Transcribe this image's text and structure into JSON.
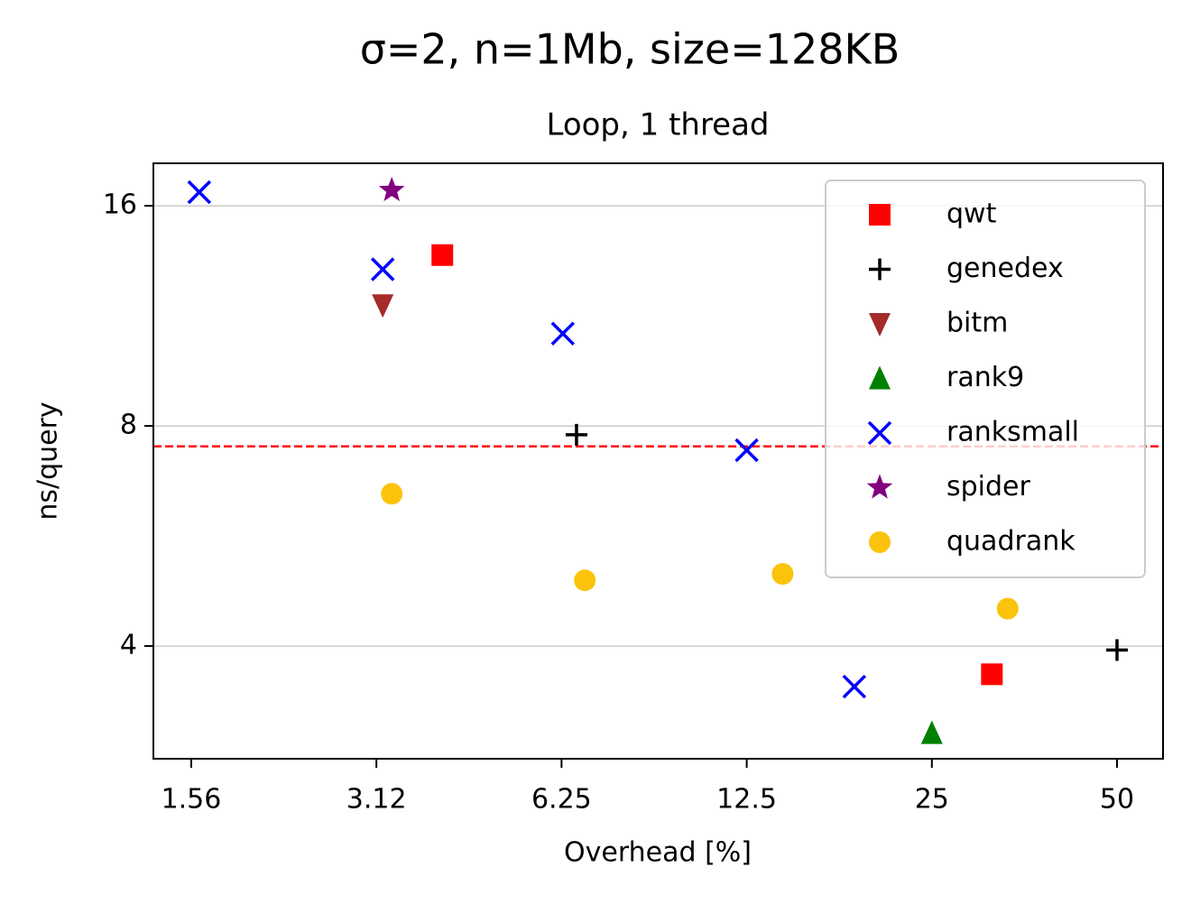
{
  "chart_data": {
    "type": "scatter",
    "title": "σ=2, n=1Mb, size=128KB",
    "subtitle": "Loop, 1 thread",
    "x_label": "Overhead [%]",
    "y_label": "ns/query",
    "xlog": true,
    "ylog": true,
    "xlim": [
      1.356,
      59.4
    ],
    "ylim": [
      2.805,
      18.29
    ],
    "xticks": [
      {
        "value": 1.5625,
        "label": "1.56"
      },
      {
        "value": 3.125,
        "label": "3.12"
      },
      6.25,
      12.5,
      25,
      50
    ],
    "yticks": [
      4,
      8,
      16
    ],
    "grid": "y",
    "legend": "upper right",
    "hline": {
      "value": 7.5,
      "color": "#ff0000"
    },
    "series": [
      {
        "name": "qwt",
        "color": "#ff0000",
        "marker": "square",
        "x": [
          4.0,
          31.3
        ],
        "values": [
          13.7,
          3.66
        ]
      },
      {
        "name": "genedex",
        "color": "#000000",
        "marker": "plus",
        "x": [
          6.61,
          50
        ],
        "values": [
          7.78,
          3.95
        ]
      },
      {
        "name": "bitm",
        "color": "#a52a2a",
        "marker": "triangle-down",
        "x": [
          3.2
        ],
        "values": [
          11.7
        ]
      },
      {
        "name": "rank9",
        "color": "#008000",
        "marker": "triangle-up",
        "x": [
          25
        ],
        "values": [
          3.04
        ]
      },
      {
        "name": "ranksmall",
        "color": "#0000ff",
        "marker": "x",
        "x": [
          1.61,
          3.2,
          6.28,
          12.5,
          18.7
        ],
        "values": [
          16.7,
          13.1,
          10.7,
          7.41,
          3.52
        ]
      },
      {
        "name": "spider",
        "color": "#800080",
        "marker": "star",
        "x": [
          3.31
        ],
        "values": [
          16.8
        ]
      },
      {
        "name": "quadrank",
        "color": "#fbc30c",
        "marker": "circle",
        "x": [
          3.31,
          6.82,
          14.3,
          33.2
        ],
        "values": [
          6.46,
          4.92,
          5.02,
          4.5
        ]
      }
    ]
  }
}
